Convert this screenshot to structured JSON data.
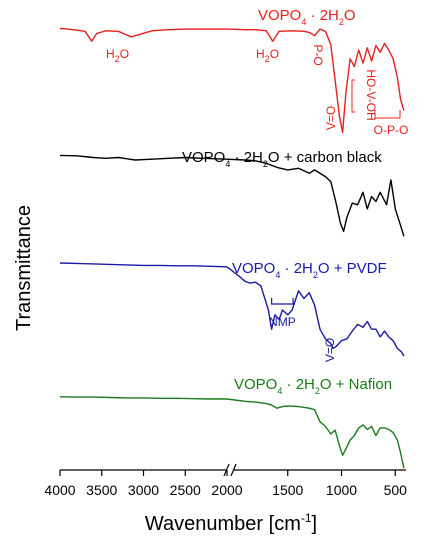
{
  "chart_data": {
    "type": "line",
    "title": "",
    "xlabel": "Wavenumber [cm",
    "xlabel_sup": "-1",
    "xlabel_close": "]",
    "ylabel": "Transmittance",
    "x_axis": {
      "reversed": true,
      "broken": true,
      "segments": [
        [
          4000,
          2000
        ],
        [
          2000,
          400
        ]
      ],
      "ticks": [
        "4000",
        "3500",
        "3000",
        "2500",
        "2000",
        "1500",
        "1000",
        "500"
      ]
    },
    "ytick_labels": false,
    "grid": false,
    "series": [
      {
        "name": "VOPO₄ · 2H₂O",
        "label_parts": [
          "VOPO",
          "4",
          "· 2H",
          "2",
          "O"
        ],
        "label_tail": "",
        "color": "#e8201c",
        "points": [
          [
            4000,
            0.995
          ],
          [
            3900,
            0.99
          ],
          [
            3800,
            0.98
          ],
          [
            3700,
            0.97
          ],
          [
            3620,
            0.88
          ],
          [
            3560,
            0.95
          ],
          [
            3450,
            0.975
          ],
          [
            3300,
            0.97
          ],
          [
            3150,
            0.92
          ],
          [
            3050,
            0.94
          ],
          [
            2900,
            0.975
          ],
          [
            2700,
            0.985
          ],
          [
            2500,
            0.99
          ],
          [
            2200,
            0.99
          ],
          [
            2000,
            0.99
          ],
          [
            1900,
            0.985
          ],
          [
            1800,
            0.985
          ],
          [
            1700,
            0.975
          ],
          [
            1640,
            0.88
          ],
          [
            1580,
            0.97
          ],
          [
            1450,
            0.975
          ],
          [
            1350,
            0.97
          ],
          [
            1300,
            0.96
          ],
          [
            1250,
            0.93
          ],
          [
            1200,
            0.99
          ],
          [
            1150,
            0.97
          ],
          [
            1100,
            0.85
          ],
          [
            1050,
            0.45
          ],
          [
            1020,
            0.2
          ],
          [
            990,
            0.05
          ],
          [
            960,
            0.4
          ],
          [
            920,
            0.72
          ],
          [
            880,
            0.65
          ],
          [
            840,
            0.8
          ],
          [
            800,
            0.68
          ],
          [
            760,
            0.82
          ],
          [
            720,
            0.7
          ],
          [
            680,
            0.84
          ],
          [
            640,
            0.78
          ],
          [
            600,
            0.86
          ],
          [
            560,
            0.8
          ],
          [
            520,
            0.72
          ],
          [
            480,
            0.55
          ],
          [
            450,
            0.35
          ],
          [
            420,
            0.25
          ]
        ],
        "annotations": [
          {
            "text": "H",
            "sub": "2",
            "after": "O",
            "x": 3620
          },
          {
            "text": "H",
            "sub": "2",
            "after": "O",
            "x": 1640
          },
          {
            "text": "P-O",
            "x": 1280
          },
          {
            "text": "V=O",
            "x": 1000
          },
          {
            "text": "HO-V-OH",
            "x": 800
          },
          {
            "text": "O-P-O",
            "x": 560
          }
        ]
      },
      {
        "name": "VOPO₄ · 2H₂O + carbon black",
        "label_parts": [
          "VOPO",
          "4",
          "· 2H",
          "2",
          "O"
        ],
        "label_tail": " + carbon black",
        "color": "#000000",
        "points": [
          [
            4000,
            0.995
          ],
          [
            3800,
            0.99
          ],
          [
            3600,
            0.97
          ],
          [
            3450,
            0.96
          ],
          [
            3300,
            0.97
          ],
          [
            3100,
            0.94
          ],
          [
            2900,
            0.95
          ],
          [
            2700,
            0.96
          ],
          [
            2500,
            0.97
          ],
          [
            2300,
            0.96
          ],
          [
            2000,
            0.95
          ],
          [
            1900,
            0.94
          ],
          [
            1800,
            0.93
          ],
          [
            1700,
            0.9
          ],
          [
            1600,
            0.85
          ],
          [
            1500,
            0.82
          ],
          [
            1400,
            0.84
          ],
          [
            1300,
            0.78
          ],
          [
            1250,
            0.82
          ],
          [
            1150,
            0.74
          ],
          [
            1100,
            0.68
          ],
          [
            1050,
            0.42
          ],
          [
            1010,
            0.18
          ],
          [
            980,
            0.08
          ],
          [
            950,
            0.25
          ],
          [
            900,
            0.42
          ],
          [
            850,
            0.4
          ],
          [
            800,
            0.55
          ],
          [
            760,
            0.35
          ],
          [
            720,
            0.5
          ],
          [
            680,
            0.44
          ],
          [
            640,
            0.55
          ],
          [
            580,
            0.4
          ],
          [
            540,
            0.7
          ],
          [
            500,
            0.35
          ],
          [
            450,
            0.15
          ],
          [
            420,
            0.02
          ]
        ]
      },
      {
        "name": "VOPO₄ · 2H₂O + PVDF",
        "label_parts": [
          "VOPO",
          "4",
          "· 2H",
          "2",
          "O"
        ],
        "label_tail": " + PVDF",
        "color": "#1a1aa6",
        "points": [
          [
            4000,
            0.99
          ],
          [
            3800,
            0.985
          ],
          [
            3600,
            0.98
          ],
          [
            3400,
            0.975
          ],
          [
            3200,
            0.97
          ],
          [
            3000,
            0.965
          ],
          [
            2800,
            0.965
          ],
          [
            2600,
            0.96
          ],
          [
            2400,
            0.96
          ],
          [
            2200,
            0.955
          ],
          [
            2000,
            0.95
          ],
          [
            1950,
            0.85
          ],
          [
            1900,
            0.8
          ],
          [
            1850,
            0.78
          ],
          [
            1800,
            0.79
          ],
          [
            1750,
            0.75
          ],
          [
            1680,
            0.5
          ],
          [
            1650,
            0.3
          ],
          [
            1620,
            0.45
          ],
          [
            1580,
            0.4
          ],
          [
            1550,
            0.5
          ],
          [
            1500,
            0.45
          ],
          [
            1460,
            0.5
          ],
          [
            1400,
            0.7
          ],
          [
            1350,
            0.62
          ],
          [
            1300,
            0.68
          ],
          [
            1250,
            0.55
          ],
          [
            1200,
            0.3
          ],
          [
            1150,
            0.2
          ],
          [
            1100,
            0.15
          ],
          [
            1080,
            0.1
          ],
          [
            1050,
            0.12
          ],
          [
            1000,
            0.18
          ],
          [
            950,
            0.2
          ],
          [
            900,
            0.28
          ],
          [
            850,
            0.35
          ],
          [
            800,
            0.32
          ],
          [
            760,
            0.38
          ],
          [
            720,
            0.3
          ],
          [
            680,
            0.3
          ],
          [
            640,
            0.22
          ],
          [
            600,
            0.28
          ],
          [
            560,
            0.22
          ],
          [
            520,
            0.18
          ],
          [
            480,
            0.1
          ],
          [
            440,
            0.06
          ],
          [
            420,
            0.02
          ]
        ],
        "annotations": [
          {
            "text": "NMP",
            "x1": 1650,
            "x2": 1450
          },
          {
            "text": "V=O",
            "x": 1080
          }
        ]
      },
      {
        "name": "VOPO₄ · 2H₂O + Nafion",
        "label_parts": [
          "VOPO",
          "4",
          "· 2H",
          "2",
          "O"
        ],
        "label_tail": " + Nafion",
        "color": "#1b7a1b",
        "points": [
          [
            4000,
            0.99
          ],
          [
            3800,
            0.985
          ],
          [
            3600,
            0.985
          ],
          [
            3400,
            0.98
          ],
          [
            3200,
            0.975
          ],
          [
            3000,
            0.975
          ],
          [
            2800,
            0.97
          ],
          [
            2600,
            0.97
          ],
          [
            2400,
            0.965
          ],
          [
            2200,
            0.96
          ],
          [
            2000,
            0.96
          ],
          [
            1900,
            0.93
          ],
          [
            1800,
            0.92
          ],
          [
            1700,
            0.9
          ],
          [
            1650,
            0.88
          ],
          [
            1600,
            0.84
          ],
          [
            1550,
            0.86
          ],
          [
            1500,
            0.87
          ],
          [
            1400,
            0.86
          ],
          [
            1300,
            0.84
          ],
          [
            1250,
            0.82
          ],
          [
            1200,
            0.66
          ],
          [
            1150,
            0.6
          ],
          [
            1100,
            0.5
          ],
          [
            1060,
            0.55
          ],
          [
            1020,
            0.35
          ],
          [
            990,
            0.22
          ],
          [
            960,
            0.3
          ],
          [
            920,
            0.42
          ],
          [
            880,
            0.48
          ],
          [
            840,
            0.58
          ],
          [
            800,
            0.62
          ],
          [
            760,
            0.56
          ],
          [
            720,
            0.6
          ],
          [
            680,
            0.48
          ],
          [
            640,
            0.58
          ],
          [
            600,
            0.58
          ],
          [
            560,
            0.56
          ],
          [
            520,
            0.52
          ],
          [
            480,
            0.42
          ],
          [
            450,
            0.25
          ],
          [
            420,
            0.05
          ]
        ]
      }
    ]
  }
}
